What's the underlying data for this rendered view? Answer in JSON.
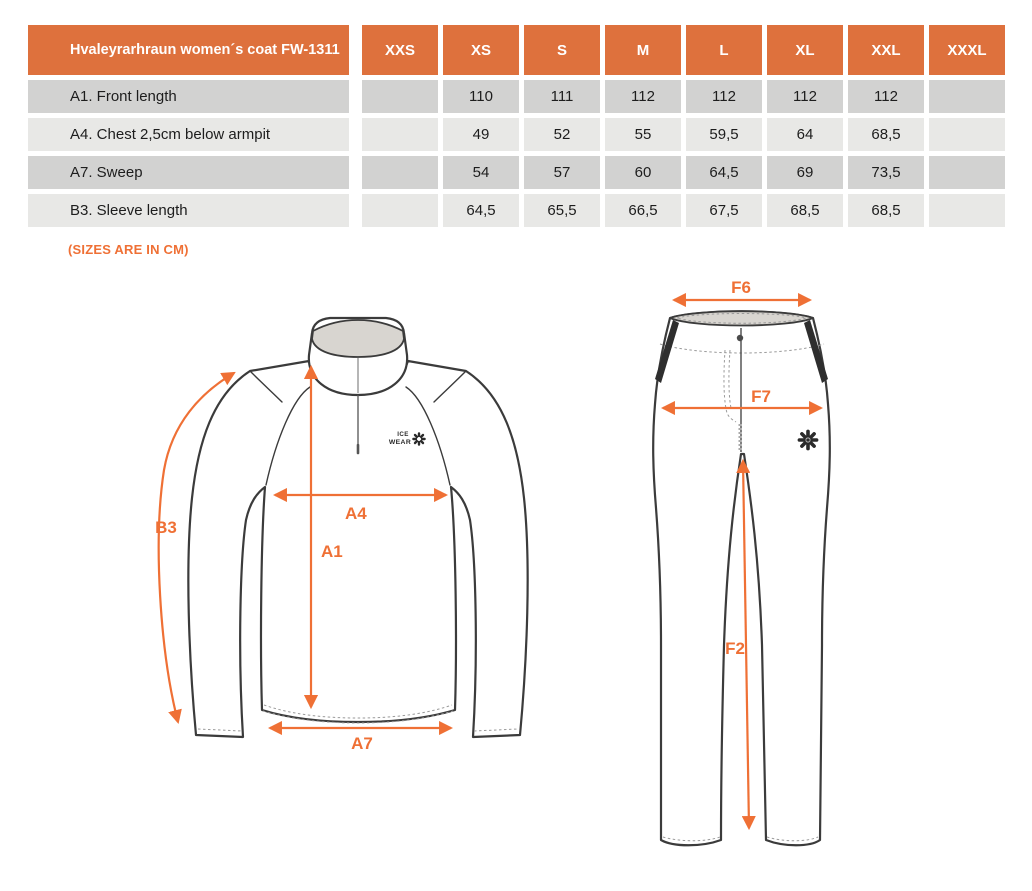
{
  "note": "(SIZES ARE IN CM)",
  "colors": {
    "header_bg": "#DE713D",
    "accent": "#EF7035",
    "row_dark": "#D2D2D1",
    "row_light": "#E8E8E6"
  },
  "table": {
    "title": "Hvaleyrarhraun women´s coat FW-1311",
    "size_headers": [
      "XXS",
      "XS",
      "S",
      "M",
      "L",
      "XL",
      "XXL",
      "XXXL"
    ],
    "rows": [
      {
        "label": "A1. Front length",
        "values": [
          "",
          "110",
          "111",
          "112",
          "112",
          "112",
          "112",
          ""
        ]
      },
      {
        "label": "A4. Chest 2,5cm below armpit",
        "values": [
          "",
          "49",
          "52",
          "55",
          "59,5",
          "64",
          "68,5",
          ""
        ]
      },
      {
        "label": "A7. Sweep",
        "values": [
          "",
          "54",
          "57",
          "60",
          "64,5",
          "69",
          "73,5",
          ""
        ]
      },
      {
        "label": "B3. Sleeve length",
        "values": [
          "",
          "64,5",
          "65,5",
          "66,5",
          "67,5",
          "68,5",
          "68,5",
          ""
        ]
      }
    ]
  },
  "drawings": {
    "jacket": {
      "labels": {
        "b3": "B3",
        "a4": "A4",
        "a1": "A1",
        "a7": "A7"
      },
      "logo_line1": "ICE",
      "logo_line2": "WEAR"
    },
    "pants": {
      "labels": {
        "f6": "F6",
        "f7": "F7",
        "f2": "F2"
      }
    }
  }
}
